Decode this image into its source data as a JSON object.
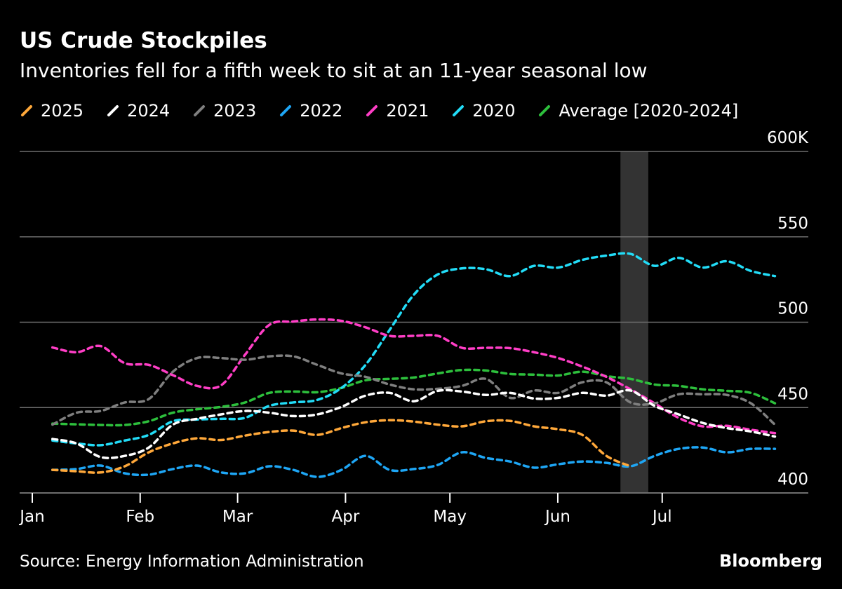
{
  "chart_data": {
    "type": "line",
    "title": "US Crude Stockpiles",
    "subtitle": "Inventories fell for a fifth week to sit at an 11-year seasonal low",
    "source": "Source: Energy Information Administration",
    "brand": "Bloomberg",
    "xlabel": "",
    "ylabel": "",
    "ylim": [
      400,
      600
    ],
    "y_ticks": [
      {
        "value": 600,
        "label": "600K"
      },
      {
        "value": 550,
        "label": "550"
      },
      {
        "value": 500,
        "label": "500"
      },
      {
        "value": 450,
        "label": "450"
      },
      {
        "value": 400,
        "label": "400"
      }
    ],
    "x_ticks": [
      {
        "day": 0,
        "label": "Jan"
      },
      {
        "day": 31,
        "label": "Feb"
      },
      {
        "day": 59,
        "label": "Mar"
      },
      {
        "day": 90,
        "label": "Apr"
      },
      {
        "day": 120,
        "label": "May"
      },
      {
        "day": 151,
        "label": "Jun"
      },
      {
        "day": 181,
        "label": "Jul"
      }
    ],
    "x_unit": "week of year (weekly observations, approx. early Jan to end of Jul)",
    "highlight_band": {
      "from_day": 169,
      "to_day": 177,
      "color": "#333333"
    },
    "grid": true,
    "legend": "top",
    "line_style": "dashed",
    "series": [
      {
        "name": "2025",
        "color": "#ffa83a",
        "values": [
          413.5,
          412.7,
          412,
          415.6,
          423.8,
          429,
          432,
          431,
          433.6,
          435.7,
          436.5,
          434,
          438,
          441.4,
          442.6,
          441.8,
          440,
          439,
          442,
          442.2,
          439,
          437.3,
          434,
          421.7,
          415.6
        ]
      },
      {
        "name": "2024",
        "color": "#ffffff",
        "values": [
          431.6,
          429,
          421,
          421.7,
          426.6,
          440,
          443.4,
          446,
          448,
          447,
          445,
          446,
          450.4,
          457,
          458.6,
          453.7,
          459.8,
          459.4,
          457.4,
          458.6,
          455.3,
          455.7,
          458.6,
          457,
          460,
          451,
          446,
          441,
          438,
          436,
          433
        ]
      },
      {
        "name": "2023",
        "color": "#7f7f7f",
        "values": [
          440,
          447,
          448,
          453,
          455,
          471,
          479,
          479,
          478,
          480,
          480,
          475,
          470,
          468,
          463.5,
          460.7,
          461,
          462.7,
          466.8,
          455.7,
          460,
          458.6,
          464.8,
          464.8,
          453,
          452.5,
          457.8,
          457.8,
          457.4,
          452.5,
          440
        ]
      },
      {
        "name": "2022",
        "color": "#1ea6f5",
        "values": [
          413.5,
          414,
          416,
          411.5,
          410.7,
          414,
          416,
          412,
          411.5,
          415.6,
          413.5,
          409.4,
          413.5,
          421.7,
          413.5,
          414,
          416.4,
          423.8,
          420.5,
          418.4,
          414.8,
          416.8,
          418.4,
          417.6,
          415.6,
          421.7,
          425.8,
          426.6,
          423.8,
          425.8,
          425.8
        ]
      },
      {
        "name": "2021",
        "color": "#ff3ec6",
        "values": [
          485.2,
          482.4,
          486,
          476,
          475,
          469,
          462.7,
          463,
          481,
          498.4,
          500.4,
          501.6,
          500.8,
          497,
          492,
          492,
          492,
          485,
          485,
          484.8,
          482.4,
          479,
          474,
          468,
          460.7,
          452.5,
          444,
          439,
          439.3,
          437,
          435
        ]
      },
      {
        "name": "2020",
        "color": "#22dcf7",
        "values": [
          430.7,
          429,
          428,
          430.7,
          434,
          442,
          443,
          443.4,
          444,
          451,
          453,
          454.5,
          461.5,
          475,
          495.5,
          516,
          528,
          531.5,
          531,
          527,
          533,
          532,
          536.5,
          539,
          540,
          533,
          537.7,
          532,
          535.7,
          530,
          527
        ]
      },
      {
        "name": "Average [2020-2024]",
        "color": "#2dbf3c",
        "values": [
          440.6,
          440.2,
          439.8,
          439.8,
          442,
          447,
          449,
          450.4,
          453,
          458.6,
          459.4,
          459,
          461.5,
          466,
          466.8,
          467.6,
          470,
          472,
          471.7,
          469.7,
          469.3,
          468.8,
          471,
          468.4,
          466.8,
          463.5,
          462.7,
          460.7,
          459.8,
          458.6,
          452.5
        ]
      }
    ]
  }
}
